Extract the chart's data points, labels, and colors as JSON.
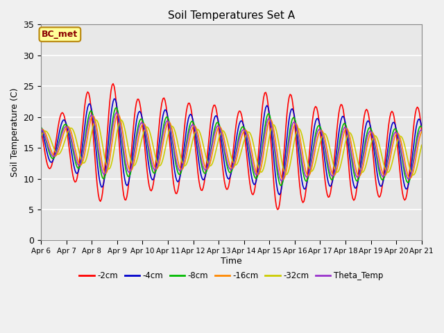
{
  "title": "Soil Temperatures Set A",
  "xlabel": "Time",
  "ylabel": "Soil Temperature (C)",
  "ylim": [
    0,
    35
  ],
  "annotation": "BC_met",
  "annotation_color": "#8b0000",
  "annotation_bg": "#ffff99",
  "annotation_edge": "#b8860b",
  "fig_bg": "#f0f0f0",
  "plot_bg": "#e8e8e8",
  "grid_color": "#ffffff",
  "series": {
    "-2cm": {
      "color": "#ff0000",
      "lw": 1.2
    },
    "-4cm": {
      "color": "#0000cc",
      "lw": 1.2
    },
    "-8cm": {
      "color": "#00bb00",
      "lw": 1.2
    },
    "-16cm": {
      "color": "#ff8800",
      "lw": 1.2
    },
    "-32cm": {
      "color": "#cccc00",
      "lw": 1.2
    },
    "Theta_Temp": {
      "color": "#9933cc",
      "lw": 1.2
    }
  },
  "xtick_labels": [
    "Apr 6",
    "Apr 7",
    "Apr 8",
    "Apr 9",
    "Apr 10",
    "Apr 11",
    "Apr 12",
    "Apr 13",
    "Apr 14",
    "Apr 15",
    "Apr 16",
    "Apr 17",
    "Apr 18",
    "Apr 19",
    "Apr 20",
    "Apr 21"
  ],
  "ytick_values": [
    0,
    5,
    10,
    15,
    20,
    25,
    30,
    35
  ],
  "legend_labels": [
    "-2cm",
    "-4cm",
    "-8cm",
    "-16cm",
    "-32cm",
    "Theta_Temp"
  ]
}
